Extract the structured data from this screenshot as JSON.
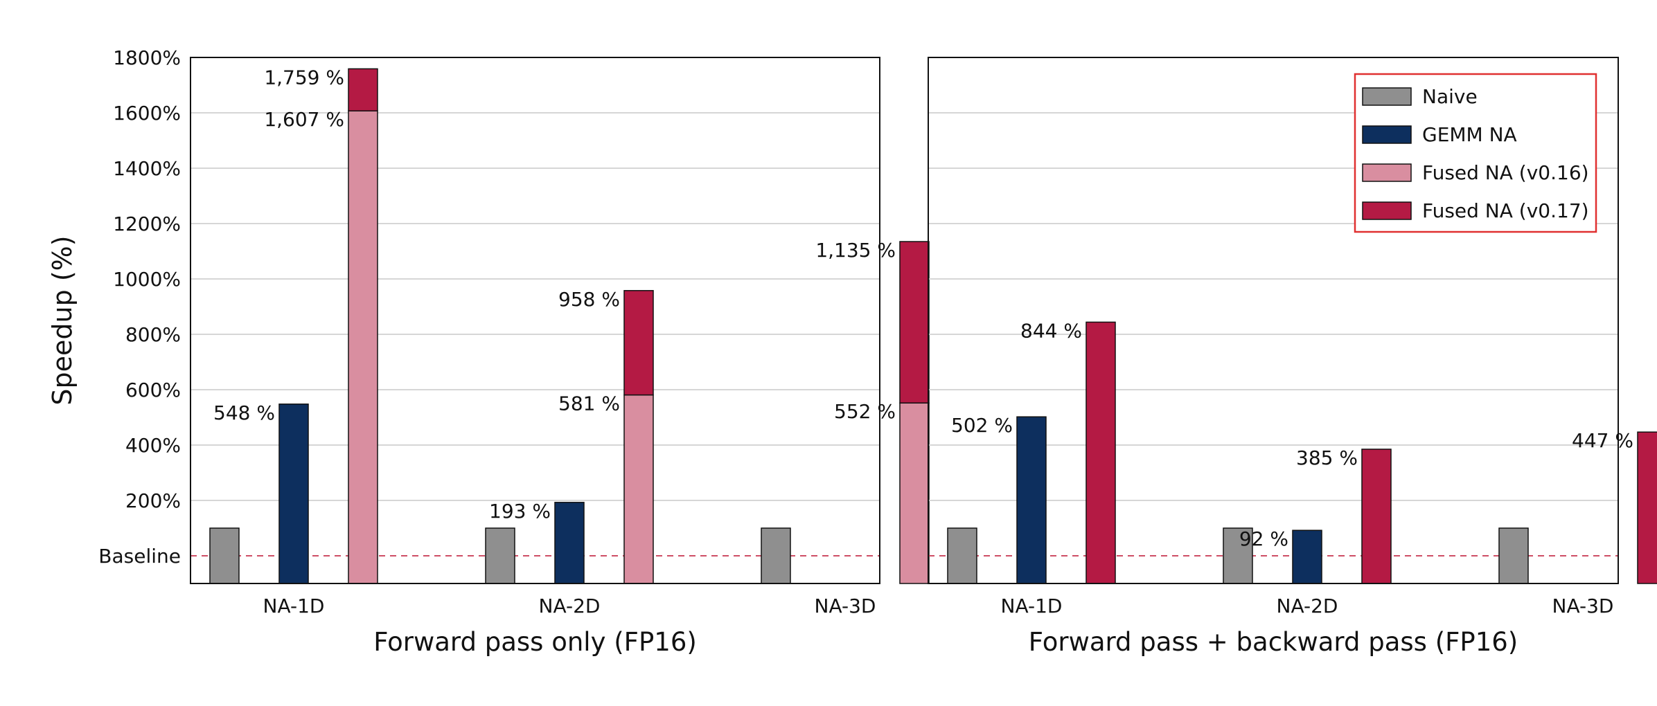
{
  "chart_data": {
    "type": "bar",
    "ylabel": "Speedup (%)",
    "yticks": [
      {
        "value": 0,
        "label": "Baseline"
      },
      {
        "value": 200,
        "label": "200%"
      },
      {
        "value": 400,
        "label": "400%"
      },
      {
        "value": 600,
        "label": "600%"
      },
      {
        "value": 800,
        "label": "800%"
      },
      {
        "value": 1000,
        "label": "1000%"
      },
      {
        "value": 1200,
        "label": "1200%"
      },
      {
        "value": 1400,
        "label": "1400%"
      },
      {
        "value": 1600,
        "label": "1600%"
      },
      {
        "value": 1800,
        "label": "1800%"
      }
    ],
    "ylim": [
      -100,
      1800
    ],
    "baseline": 0,
    "grid": true,
    "legend": {
      "placement": "top-right",
      "entries": [
        {
          "name": "Naive",
          "color": "#8f8f8f"
        },
        {
          "name": "GEMM NA",
          "color": "#0d2f5e"
        },
        {
          "name": "Fused NA (v0.16)",
          "color": "#d98ea0"
        },
        {
          "name": "Fused NA (v0.17)",
          "color": "#b41a44"
        }
      ]
    },
    "panels": [
      {
        "xlabel": "Forward pass only (FP16)",
        "categories": [
          "NA-1D",
          "NA-2D",
          "NA-3D"
        ],
        "groups": [
          {
            "naive": 0,
            "gemm": 548,
            "gemm_label": "548 %",
            "fused_v016": 1607,
            "fused_v016_label": "1,607 %",
            "fused_v017": 1759,
            "fused_v017_label": "1,759 %"
          },
          {
            "naive": 0,
            "gemm": 193,
            "gemm_label": "193 %",
            "fused_v016": 581,
            "fused_v016_label": "581 %",
            "fused_v017": 958,
            "fused_v017_label": "958 %"
          },
          {
            "naive": 0,
            "gemm": null,
            "gemm_label": "",
            "fused_v016": 552,
            "fused_v016_label": "552 %",
            "fused_v017": 1135,
            "fused_v017_label": "1,135 %"
          }
        ]
      },
      {
        "xlabel": "Forward pass + backward pass (FP16)",
        "categories": [
          "NA-1D",
          "NA-2D",
          "NA-3D"
        ],
        "groups": [
          {
            "naive": 0,
            "gemm": 502,
            "gemm_label": "502 %",
            "fused_v016": null,
            "fused_v016_label": "",
            "fused_v017": 844,
            "fused_v017_label": "844 %"
          },
          {
            "naive": 0,
            "gemm": 92,
            "gemm_label": "92 %",
            "fused_v016": null,
            "fused_v016_label": "",
            "fused_v017": 385,
            "fused_v017_label": "385 %"
          },
          {
            "naive": 0,
            "gemm": null,
            "gemm_label": "",
            "fused_v016": null,
            "fused_v016_label": "",
            "fused_v017": 447,
            "fused_v017_label": "447 %"
          }
        ]
      }
    ]
  },
  "colors": {
    "grid": "#c8c8c8",
    "baseline_line": "#c8344f",
    "legend_border": "#e03030"
  }
}
